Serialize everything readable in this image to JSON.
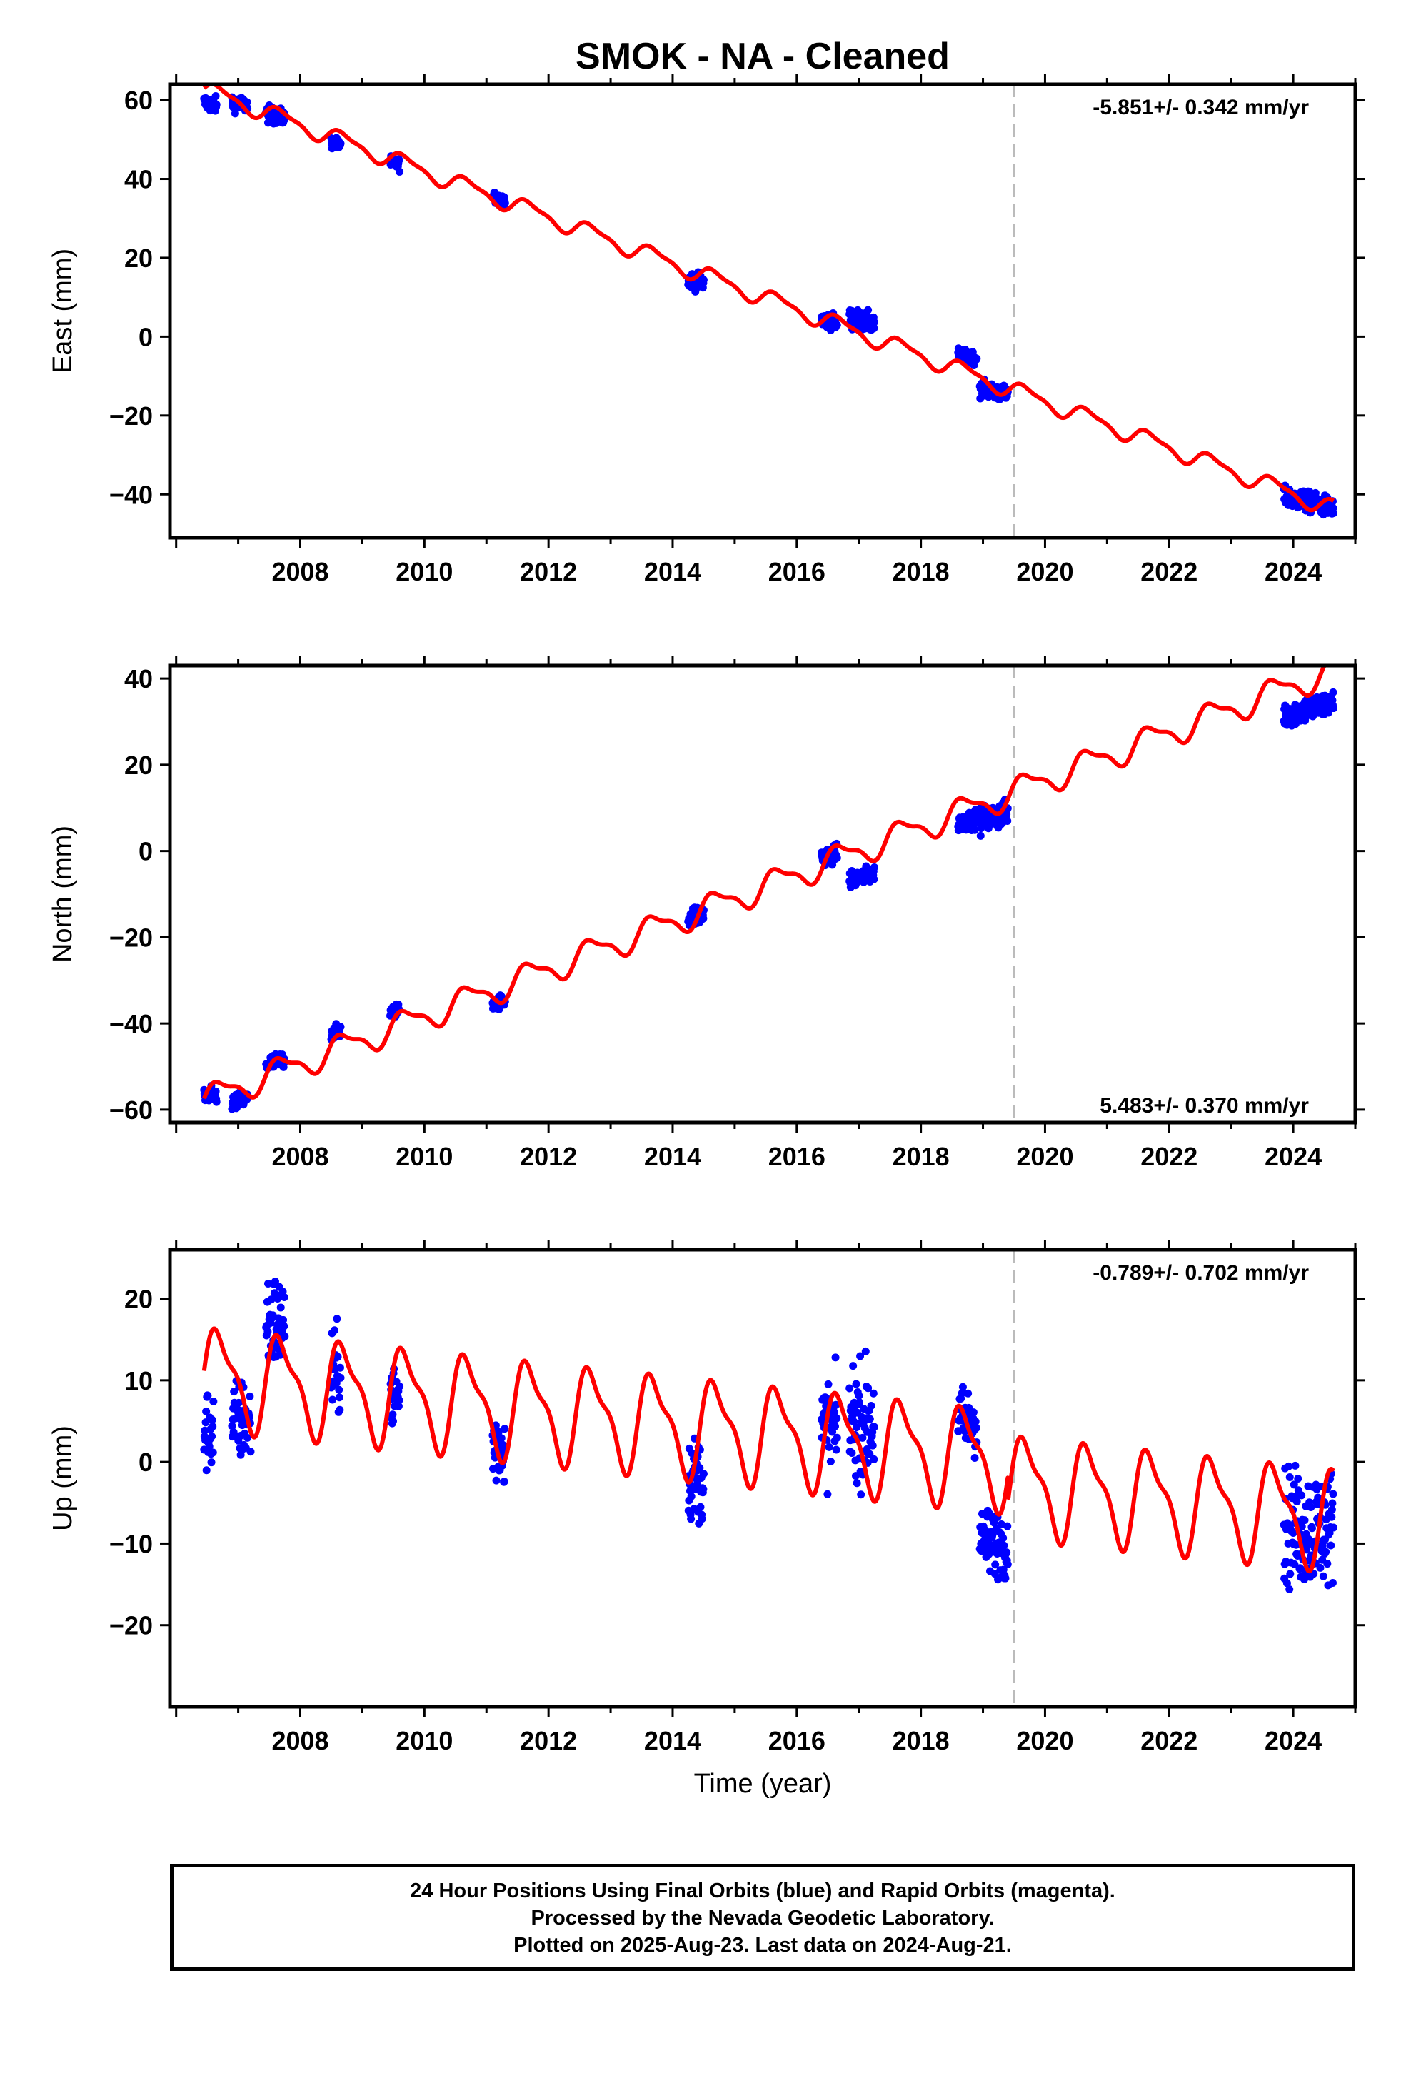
{
  "page_title": "SMOK  - NA - Cleaned",
  "colors": {
    "data_points": "#0000ff",
    "model_line": "#ff0000",
    "reference_line": "#bbbbbb",
    "frame": "#000000"
  },
  "x_axis": {
    "label": "Time (year)",
    "range": [
      2005.9,
      2025.0
    ],
    "tick_labels": [
      "2008",
      "2010",
      "2012",
      "2014",
      "2016",
      "2018",
      "2020",
      "2022",
      "2024"
    ],
    "reference_line_year": 2019.5
  },
  "footer": {
    "line1": "24 Hour Positions Using Final Orbits (blue) and Rapid Orbits (magenta).",
    "line2": "Processed by the Nevada Geodetic Laboratory.",
    "line3": "Plotted on 2025-Aug-23. Last data on 2024-Aug-21."
  },
  "chart_data": [
    {
      "type": "scatter",
      "panel": "east",
      "ylabel": "East (mm)",
      "ylim": [
        -51,
        64
      ],
      "y_ticks": [
        "60",
        "40",
        "20",
        "0",
        "−20",
        "−40"
      ],
      "rate_label": "-5.851+/- 0.342 mm/yr",
      "rate_position": "top-right",
      "model": {
        "rate_mm_per_yr": -5.851,
        "y_at_2006_5": 62.5,
        "annual_amplitude": 2.0,
        "step": {
          "year": 2019.4,
          "offset": 0
        }
      },
      "observation_clusters": [
        {
          "start": 2006.45,
          "end": 2006.65,
          "center": 59,
          "spread": 2
        },
        {
          "start": 2006.9,
          "end": 2007.15,
          "center": 59,
          "spread": 2
        },
        {
          "start": 2007.45,
          "end": 2007.75,
          "center": 56,
          "spread": 2
        },
        {
          "start": 2008.5,
          "end": 2008.65,
          "center": 49,
          "spread": 1.5
        },
        {
          "start": 2009.45,
          "end": 2009.6,
          "center": 44,
          "spread": 1.5
        },
        {
          "start": 2011.1,
          "end": 2011.3,
          "center": 35,
          "spread": 1.5
        },
        {
          "start": 2014.25,
          "end": 2014.5,
          "center": 14,
          "spread": 2
        },
        {
          "start": 2016.4,
          "end": 2016.65,
          "center": 4,
          "spread": 2
        },
        {
          "start": 2016.85,
          "end": 2017.25,
          "center": 4,
          "spread": 2.5
        },
        {
          "start": 2018.6,
          "end": 2018.9,
          "center": -5,
          "spread": 1.5
        },
        {
          "start": 2018.95,
          "end": 2019.4,
          "center": -14,
          "spread": 2
        },
        {
          "start": 2023.85,
          "end": 2024.65,
          "center": -42,
          "spread": 2.5
        }
      ]
    },
    {
      "type": "scatter",
      "panel": "north",
      "ylabel": "North (mm)",
      "ylim": [
        -63,
        43
      ],
      "y_ticks": [
        "40",
        "20",
        "0",
        "−20",
        "−40",
        "−60"
      ],
      "rate_label": "5.483+/- 0.370 mm/yr",
      "rate_position": "bottom-right",
      "model": {
        "rate_mm_per_yr": 5.483,
        "y_at_2006_5": -57.5,
        "annual_amplitude": 3.0,
        "step": {
          "year": 2019.4,
          "offset": 0
        }
      },
      "observation_clusters": [
        {
          "start": 2006.45,
          "end": 2006.65,
          "center": -57,
          "spread": 2
        },
        {
          "start": 2006.9,
          "end": 2007.15,
          "center": -58,
          "spread": 2
        },
        {
          "start": 2007.45,
          "end": 2007.75,
          "center": -49,
          "spread": 2
        },
        {
          "start": 2008.5,
          "end": 2008.65,
          "center": -42,
          "spread": 1.5
        },
        {
          "start": 2009.45,
          "end": 2009.6,
          "center": -37,
          "spread": 1.5
        },
        {
          "start": 2011.1,
          "end": 2011.3,
          "center": -35,
          "spread": 1.5
        },
        {
          "start": 2014.25,
          "end": 2014.5,
          "center": -15,
          "spread": 2.5
        },
        {
          "start": 2016.4,
          "end": 2016.65,
          "center": -1,
          "spread": 2
        },
        {
          "start": 2016.85,
          "end": 2017.25,
          "center": -6,
          "spread": 2
        },
        {
          "start": 2018.6,
          "end": 2018.9,
          "center": 7,
          "spread": 2
        },
        {
          "start": 2018.95,
          "end": 2019.4,
          "center": 8,
          "spread": 3
        },
        {
          "start": 2023.85,
          "end": 2024.65,
          "center": 33,
          "spread": 3
        }
      ]
    },
    {
      "type": "scatter",
      "panel": "up",
      "ylabel": "Up (mm)",
      "ylim": [
        -30,
        26
      ],
      "y_ticks": [
        "20",
        "10",
        "0",
        "−10",
        "−20"
      ],
      "rate_label": "-0.789+/- 0.702 mm/yr",
      "rate_position": "top-right",
      "model": {
        "rate_mm_per_yr": -0.789,
        "y_at_2006_5": 10.5,
        "annual_amplitude": 5.5,
        "step": {
          "year": 2019.4,
          "offset": -3
        }
      },
      "observation_clusters": [
        {
          "start": 2006.45,
          "end": 2006.6,
          "center": 4,
          "spread": 5
        },
        {
          "start": 2006.9,
          "end": 2007.2,
          "center": 5,
          "spread": 5
        },
        {
          "start": 2007.45,
          "end": 2007.75,
          "center": 17,
          "spread": 6
        },
        {
          "start": 2008.5,
          "end": 2008.65,
          "center": 11,
          "spread": 5
        },
        {
          "start": 2009.45,
          "end": 2009.6,
          "center": 8,
          "spread": 4
        },
        {
          "start": 2011.1,
          "end": 2011.3,
          "center": 2,
          "spread": 5
        },
        {
          "start": 2014.25,
          "end": 2014.5,
          "center": -2,
          "spread": 5
        },
        {
          "start": 2016.4,
          "end": 2016.65,
          "center": 4,
          "spread": 6
        },
        {
          "start": 2016.85,
          "end": 2017.25,
          "center": 5,
          "spread": 7
        },
        {
          "start": 2018.6,
          "end": 2018.9,
          "center": 5,
          "spread": 4
        },
        {
          "start": 2018.95,
          "end": 2019.4,
          "center": -10,
          "spread": 4
        },
        {
          "start": 2023.85,
          "end": 2024.65,
          "center": -8,
          "spread": 7
        }
      ]
    }
  ]
}
